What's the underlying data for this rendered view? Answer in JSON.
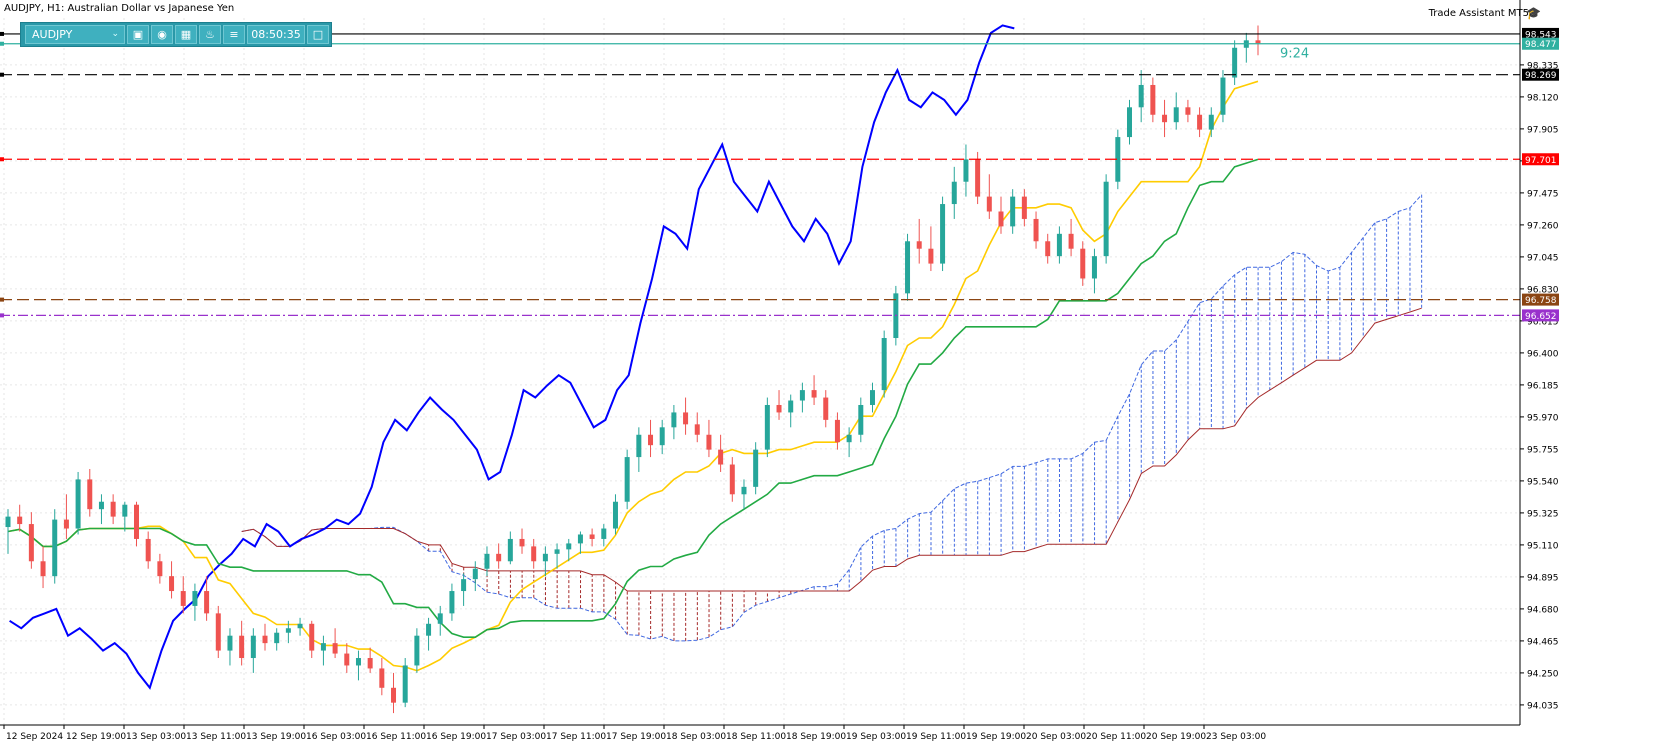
{
  "window": {
    "title": "AUDJPY, H1:  Australian Dollar vs Japanese Yen",
    "assistant_label": "Trade Assistant MT5",
    "assistant_icon": "graduation-cap-icon"
  },
  "toolbar": {
    "symbol": "AUDJPY",
    "time": "08:50:35",
    "buttons": [
      "camera-icon",
      "eye-icon",
      "calendar-icon",
      "bell-icon",
      "menu-icon"
    ],
    "minimize_icon": "window-icon"
  },
  "countdown": "9:24",
  "colors": {
    "bull": "#26a69a",
    "bear": "#ef5350",
    "tenkan": "#ffcc00",
    "kijun": "#22aa44",
    "chikou": "#0000ff",
    "cloud_bear": "#a52a2a",
    "cloud_bull": "#4169e1",
    "ask_line": "#30b0a0"
  },
  "price_axis": {
    "ticks": [
      "98.335",
      "98.120",
      "97.905",
      "97.690",
      "97.475",
      "97.260",
      "97.045",
      "96.830",
      "96.615",
      "96.400",
      "96.185",
      "95.970",
      "95.755",
      "95.540",
      "95.325",
      "95.110",
      "94.895",
      "94.680",
      "94.465",
      "94.250",
      "94.035"
    ],
    "markers": [
      {
        "label": "98.543",
        "bg": "#000000",
        "color": "#ffffff",
        "value": 98.543
      },
      {
        "label": "98.477",
        "bg": "#30b0a0",
        "color": "#ffffff",
        "value": 98.477
      },
      {
        "label": "98.269",
        "bg": "#000000",
        "color": "#ffffff",
        "value": 98.269
      },
      {
        "label": "97.701",
        "bg": "#ff0000",
        "color": "#ffffff",
        "value": 97.701
      },
      {
        "label": "96.758",
        "bg": "#8b4513",
        "color": "#ffffff",
        "value": 96.758
      },
      {
        "label": "96.652",
        "bg": "#9932cc",
        "color": "#ffffff",
        "value": 96.652
      }
    ]
  },
  "time_axis": {
    "labels": [
      "12 Sep 2024",
      "12 Sep 19:00",
      "13 Sep 03:00",
      "13 Sep 11:00",
      "13 Sep 19:00",
      "16 Sep 03:00",
      "16 Sep 11:00",
      "16 Sep 19:00",
      "17 Sep 03:00",
      "17 Sep 11:00",
      "17 Sep 19:00",
      "18 Sep 03:00",
      "18 Sep 11:00",
      "18 Sep 19:00",
      "19 Sep 03:00",
      "19 Sep 11:00",
      "19 Sep 19:00",
      "20 Sep 03:00",
      "20 Sep 11:00",
      "20 Sep 19:00",
      "23 Sep 03:00"
    ]
  },
  "levels": [
    {
      "name": "high-line",
      "value": 98.543,
      "color": "#000000",
      "style": "solid"
    },
    {
      "name": "ask-line",
      "value": 98.477,
      "color": "#30b0a0",
      "style": "solid"
    },
    {
      "name": "resistance-line",
      "value": 98.269,
      "color": "#000000",
      "style": "dash"
    },
    {
      "name": "red-level-line",
      "value": 97.701,
      "color": "#ff0000",
      "style": "dash"
    },
    {
      "name": "brown-level-line",
      "value": 96.758,
      "color": "#8b4513",
      "style": "dash"
    },
    {
      "name": "purple-level-line",
      "value": 96.652,
      "color": "#9932cc",
      "style": "dashdot"
    }
  ],
  "chart_data": {
    "type": "candlestick",
    "symbol": "AUDJPY",
    "timeframe": "H1",
    "ylim": [
      93.9,
      98.65
    ],
    "candles": [
      [
        95.23,
        95.35,
        95.05,
        95.3
      ],
      [
        95.3,
        95.38,
        95.2,
        95.25
      ],
      [
        95.25,
        95.33,
        94.95,
        95.0
      ],
      [
        95.0,
        95.1,
        94.82,
        94.9
      ],
      [
        94.9,
        95.35,
        94.85,
        95.28
      ],
      [
        95.28,
        95.45,
        95.15,
        95.22
      ],
      [
        95.22,
        95.6,
        95.18,
        95.55
      ],
      [
        95.55,
        95.62,
        95.3,
        95.35
      ],
      [
        95.35,
        95.45,
        95.25,
        95.4
      ],
      [
        95.4,
        95.45,
        95.25,
        95.3
      ],
      [
        95.3,
        95.4,
        95.2,
        95.38
      ],
      [
        95.38,
        95.4,
        95.1,
        95.15
      ],
      [
        95.15,
        95.2,
        94.95,
        95.0
      ],
      [
        95.0,
        95.05,
        94.85,
        94.9
      ],
      [
        94.9,
        95.0,
        94.75,
        94.8
      ],
      [
        94.8,
        94.9,
        94.65,
        94.7
      ],
      [
        94.7,
        94.85,
        94.6,
        94.8
      ],
      [
        94.8,
        94.9,
        94.6,
        94.65
      ],
      [
        94.65,
        94.7,
        94.35,
        94.4
      ],
      [
        94.4,
        94.55,
        94.3,
        94.5
      ],
      [
        94.5,
        94.6,
        94.3,
        94.35
      ],
      [
        94.35,
        94.55,
        94.25,
        94.5
      ],
      [
        94.5,
        94.58,
        94.4,
        94.45
      ],
      [
        94.45,
        94.55,
        94.4,
        94.52
      ],
      [
        94.52,
        94.6,
        94.45,
        94.55
      ],
      [
        94.55,
        94.62,
        94.5,
        94.58
      ],
      [
        94.58,
        94.6,
        94.35,
        94.4
      ],
      [
        94.4,
        94.5,
        94.3,
        94.45
      ],
      [
        94.45,
        94.55,
        94.35,
        94.38
      ],
      [
        94.38,
        94.45,
        94.25,
        94.3
      ],
      [
        94.3,
        94.4,
        94.2,
        94.35
      ],
      [
        94.35,
        94.42,
        94.25,
        94.28
      ],
      [
        94.28,
        94.35,
        94.1,
        94.15
      ],
      [
        94.15,
        94.25,
        93.98,
        94.05
      ],
      [
        94.05,
        94.35,
        94.02,
        94.3
      ],
      [
        94.3,
        94.55,
        94.25,
        94.5
      ],
      [
        94.5,
        94.62,
        94.4,
        94.58
      ],
      [
        94.58,
        94.7,
        94.5,
        94.65
      ],
      [
        94.65,
        94.85,
        94.6,
        94.8
      ],
      [
        94.8,
        94.92,
        94.7,
        94.88
      ],
      [
        94.88,
        95.0,
        94.8,
        94.95
      ],
      [
        94.95,
        95.1,
        94.9,
        95.05
      ],
      [
        95.05,
        95.12,
        94.95,
        95.0
      ],
      [
        95.0,
        95.2,
        94.98,
        95.15
      ],
      [
        95.15,
        95.22,
        95.05,
        95.1
      ],
      [
        95.1,
        95.15,
        94.95,
        95.0
      ],
      [
        95.0,
        95.1,
        94.9,
        95.05
      ],
      [
        95.05,
        95.12,
        94.95,
        95.08
      ],
      [
        95.08,
        95.15,
        95.0,
        95.12
      ],
      [
        95.12,
        95.2,
        95.05,
        95.18
      ],
      [
        95.18,
        95.22,
        95.1,
        95.15
      ],
      [
        95.15,
        95.25,
        95.1,
        95.22
      ],
      [
        95.22,
        95.45,
        95.18,
        95.4
      ],
      [
        95.4,
        95.75,
        95.35,
        95.7
      ],
      [
        95.7,
        95.9,
        95.6,
        95.85
      ],
      [
        95.85,
        95.95,
        95.7,
        95.78
      ],
      [
        95.78,
        95.95,
        95.72,
        95.9
      ],
      [
        95.9,
        96.05,
        95.82,
        96.0
      ],
      [
        96.0,
        96.1,
        95.85,
        95.92
      ],
      [
        95.92,
        96.0,
        95.8,
        95.85
      ],
      [
        95.85,
        95.95,
        95.7,
        95.75
      ],
      [
        95.75,
        95.85,
        95.6,
        95.65
      ],
      [
        95.65,
        95.7,
        95.4,
        95.45
      ],
      [
        95.45,
        95.55,
        95.35,
        95.5
      ],
      [
        95.5,
        95.8,
        95.45,
        95.75
      ],
      [
        95.75,
        96.1,
        95.7,
        96.05
      ],
      [
        96.05,
        96.15,
        95.95,
        96.0
      ],
      [
        96.0,
        96.12,
        95.9,
        96.08
      ],
      [
        96.08,
        96.2,
        96.0,
        96.15
      ],
      [
        96.15,
        96.25,
        96.05,
        96.1
      ],
      [
        96.1,
        96.15,
        95.9,
        95.95
      ],
      [
        95.95,
        96.0,
        95.75,
        95.8
      ],
      [
        95.8,
        95.9,
        95.7,
        95.85
      ],
      [
        95.85,
        96.1,
        95.8,
        96.05
      ],
      [
        96.05,
        96.2,
        96.0,
        96.15
      ],
      [
        96.15,
        96.55,
        96.1,
        96.5
      ],
      [
        96.5,
        96.85,
        96.45,
        96.8
      ],
      [
        96.8,
        97.2,
        96.75,
        97.15
      ],
      [
        97.15,
        97.3,
        97.0,
        97.1
      ],
      [
        97.1,
        97.25,
        96.95,
        97.0
      ],
      [
        97.0,
        97.45,
        96.95,
        97.4
      ],
      [
        97.4,
        97.65,
        97.3,
        97.55
      ],
      [
        97.55,
        97.8,
        97.45,
        97.7
      ],
      [
        97.7,
        97.75,
        97.4,
        97.45
      ],
      [
        97.45,
        97.6,
        97.3,
        97.35
      ],
      [
        97.35,
        97.45,
        97.2,
        97.25
      ],
      [
        97.25,
        97.5,
        97.2,
        97.45
      ],
      [
        97.45,
        97.5,
        97.25,
        97.3
      ],
      [
        97.3,
        97.35,
        97.1,
        97.15
      ],
      [
        97.15,
        97.2,
        97.0,
        97.05
      ],
      [
        97.05,
        97.25,
        97.0,
        97.2
      ],
      [
        97.2,
        97.3,
        97.05,
        97.1
      ],
      [
        97.1,
        97.15,
        96.85,
        96.9
      ],
      [
        96.9,
        97.1,
        96.8,
        97.05
      ],
      [
        97.05,
        97.6,
        97.0,
        97.55
      ],
      [
        97.55,
        97.9,
        97.5,
        97.85
      ],
      [
        97.85,
        98.1,
        97.8,
        98.05
      ],
      [
        98.05,
        98.3,
        97.95,
        98.2
      ],
      [
        98.2,
        98.25,
        97.95,
        98.0
      ],
      [
        98.0,
        98.1,
        97.85,
        97.95
      ],
      [
        97.95,
        98.15,
        97.9,
        98.05
      ],
      [
        98.05,
        98.1,
        97.95,
        98.0
      ],
      [
        98.0,
        98.05,
        97.85,
        97.9
      ],
      [
        97.9,
        98.05,
        97.85,
        98.0
      ],
      [
        98.0,
        98.3,
        97.95,
        98.25
      ],
      [
        98.25,
        98.5,
        98.2,
        98.45
      ],
      [
        98.45,
        98.55,
        98.35,
        98.5
      ],
      [
        98.5,
        98.6,
        98.4,
        98.48
      ]
    ]
  }
}
